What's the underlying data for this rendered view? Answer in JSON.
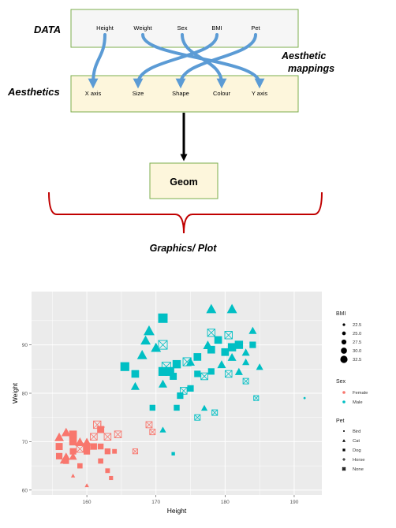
{
  "diagram": {
    "data_label": "DATA",
    "aesthetics_label": "Aesthetics",
    "mappings_label_line1": "Aesthetic",
    "mappings_label_line2": "mappings",
    "data_fields": [
      "Height",
      "Weight",
      "Sex",
      "BMI",
      "Pet"
    ],
    "aesthetic_fields": [
      "X axis",
      "Size",
      "Shape",
      "Colour",
      "Y axis"
    ],
    "mappings": [
      {
        "from": "Height",
        "to": "X axis"
      },
      {
        "from": "Weight",
        "to": "Y axis"
      },
      {
        "from": "Sex",
        "to": "Colour"
      },
      {
        "from": "BMI",
        "to": "Size"
      },
      {
        "from": "Pet",
        "to": "Shape"
      }
    ],
    "geom_label": "Geom",
    "output_label": "Graphics/ Plot",
    "colors": {
      "data_box_fill": "#f6f6f6",
      "box_border": "#7cae4c",
      "aes_box_fill": "#fdf6dc",
      "geom_box_fill": "#fdf6dc",
      "arrow_blue": "#5b9bd5",
      "brace_red": "#c00000",
      "female": "#f8766d",
      "male": "#00bfc4",
      "panel_bg": "#ebebeb"
    }
  },
  "chart_data": {
    "type": "scatter",
    "xlabel": "Height",
    "ylabel": "Weight",
    "xlim": [
      152,
      194
    ],
    "ylim": [
      59,
      101
    ],
    "xticks": [
      160,
      170,
      180,
      190
    ],
    "yticks": [
      60,
      70,
      80,
      90
    ],
    "grid": true,
    "legend_position": "right",
    "legend": {
      "bmi": {
        "title": "BMI",
        "entries": [
          "22.5",
          "25.0",
          "27.5",
          "30.0",
          "32.5"
        ]
      },
      "sex": {
        "title": "Sex",
        "entries": [
          "Female",
          "Male"
        ]
      },
      "pet": {
        "title": "Pet",
        "entries": [
          "Bird",
          "Cat",
          "Dog",
          "Horse",
          "None"
        ]
      }
    },
    "series": [
      {
        "name": "Female",
        "color": "#f8766d",
        "points": [
          {
            "x": 156,
            "y": 71,
            "pet": "Cat",
            "bmi": 29
          },
          {
            "x": 157,
            "y": 72,
            "pet": "Cat",
            "bmi": 29
          },
          {
            "x": 158,
            "y": 70,
            "pet": "Dog",
            "bmi": 28
          },
          {
            "x": 158,
            "y": 68,
            "pet": "Dog",
            "bmi": 27
          },
          {
            "x": 157,
            "y": 66,
            "pet": "Dog",
            "bmi": 26
          },
          {
            "x": 159,
            "y": 70,
            "pet": "Cat",
            "bmi": 29
          },
          {
            "x": 160,
            "y": 69,
            "pet": "Dog",
            "bmi": 28
          },
          {
            "x": 159,
            "y": 65,
            "pet": "Dog",
            "bmi": 25
          },
          {
            "x": 158,
            "y": 71.5,
            "pet": "Dog",
            "bmi": 29
          },
          {
            "x": 160,
            "y": 68,
            "pet": "Dog",
            "bmi": 27
          },
          {
            "x": 161,
            "y": 69,
            "pet": "Dog",
            "bmi": 27
          },
          {
            "x": 156,
            "y": 67,
            "pet": "Dog",
            "bmi": 27
          },
          {
            "x": 157,
            "y": 67,
            "pet": "Cat",
            "bmi": 27
          },
          {
            "x": 158,
            "y": 67,
            "pet": "Cat",
            "bmi": 27
          },
          {
            "x": 156,
            "y": 69,
            "pet": "Dog",
            "bmi": 28
          },
          {
            "x": 160,
            "y": 70,
            "pet": "Cat",
            "bmi": 28
          },
          {
            "x": 159,
            "y": 68.5,
            "pet": "None",
            "bmi": 27
          },
          {
            "x": 162,
            "y": 73,
            "pet": "Horse",
            "bmi": 28
          },
          {
            "x": 161.5,
            "y": 73.5,
            "pet": "None",
            "bmi": 28
          },
          {
            "x": 162,
            "y": 72.5,
            "pet": "Dog",
            "bmi": 28
          },
          {
            "x": 161,
            "y": 71,
            "pet": "None",
            "bmi": 27
          },
          {
            "x": 163,
            "y": 71,
            "pet": "None",
            "bmi": 27
          },
          {
            "x": 164.5,
            "y": 71.5,
            "pet": "None",
            "bmi": 27
          },
          {
            "x": 158,
            "y": 70,
            "pet": "None",
            "bmi": 27
          },
          {
            "x": 162,
            "y": 69,
            "pet": "Dog",
            "bmi": 26
          },
          {
            "x": 163,
            "y": 68,
            "pet": "Dog",
            "bmi": 26
          },
          {
            "x": 162,
            "y": 66,
            "pet": "Dog",
            "bmi": 25
          },
          {
            "x": 163,
            "y": 64,
            "pet": "Dog",
            "bmi": 24
          },
          {
            "x": 163.5,
            "y": 62.5,
            "pet": "Dog",
            "bmi": 23
          },
          {
            "x": 160,
            "y": 61,
            "pet": "Cat",
            "bmi": 22
          },
          {
            "x": 158,
            "y": 63,
            "pet": "Cat",
            "bmi": 22
          },
          {
            "x": 156.5,
            "y": 66,
            "pet": "Cat",
            "bmi": 24
          },
          {
            "x": 169,
            "y": 73.5,
            "pet": "None",
            "bmi": 26
          },
          {
            "x": 169.5,
            "y": 72,
            "pet": "None",
            "bmi": 25
          },
          {
            "x": 167,
            "y": 68,
            "pet": "None",
            "bmi": 24
          },
          {
            "x": 164,
            "y": 68,
            "pet": "Dog",
            "bmi": 24
          }
        ]
      },
      {
        "name": "Male",
        "color": "#00bfc4",
        "points": [
          {
            "x": 171,
            "y": 95.5,
            "pet": "Dog",
            "bmi": 32
          },
          {
            "x": 169,
            "y": 93,
            "pet": "Cat",
            "bmi": 31
          },
          {
            "x": 168.5,
            "y": 91,
            "pet": "Cat",
            "bmi": 30
          },
          {
            "x": 168,
            "y": 88,
            "pet": "Cat",
            "bmi": 30
          },
          {
            "x": 170,
            "y": 89.5,
            "pet": "Cat",
            "bmi": 30
          },
          {
            "x": 171,
            "y": 90,
            "pet": "None",
            "bmi": 30
          },
          {
            "x": 165.5,
            "y": 85.5,
            "pet": "Dog",
            "bmi": 31
          },
          {
            "x": 167,
            "y": 84,
            "pet": "Dog",
            "bmi": 29
          },
          {
            "x": 171,
            "y": 84.5,
            "pet": "Dog",
            "bmi": 31
          },
          {
            "x": 172,
            "y": 84.5,
            "pet": "Dog",
            "bmi": 31
          },
          {
            "x": 171.5,
            "y": 85.5,
            "pet": "None",
            "bmi": 30
          },
          {
            "x": 173,
            "y": 86,
            "pet": "Dog",
            "bmi": 30
          },
          {
            "x": 174.5,
            "y": 86.5,
            "pet": "None",
            "bmi": 29
          },
          {
            "x": 176,
            "y": 87.5,
            "pet": "Dog",
            "bmi": 29
          },
          {
            "x": 175,
            "y": 86.5,
            "pet": "Cat",
            "bmi": 28
          },
          {
            "x": 167,
            "y": 81.5,
            "pet": "Cat",
            "bmi": 28
          },
          {
            "x": 172.5,
            "y": 83.5,
            "pet": "Dog",
            "bmi": 28
          },
          {
            "x": 171,
            "y": 82,
            "pet": "Cat",
            "bmi": 28
          },
          {
            "x": 174,
            "y": 80.5,
            "pet": "None",
            "bmi": 27
          },
          {
            "x": 173.5,
            "y": 79.5,
            "pet": "Dog",
            "bmi": 27
          },
          {
            "x": 175,
            "y": 81,
            "pet": "Dog",
            "bmi": 27
          },
          {
            "x": 176,
            "y": 84,
            "pet": "Dog",
            "bmi": 27
          },
          {
            "x": 177,
            "y": 83.5,
            "pet": "None",
            "bmi": 27
          },
          {
            "x": 173,
            "y": 77,
            "pet": "Dog",
            "bmi": 26
          },
          {
            "x": 169.5,
            "y": 77,
            "pet": "Dog",
            "bmi": 26
          },
          {
            "x": 176,
            "y": 75,
            "pet": "None",
            "bmi": 25
          },
          {
            "x": 177,
            "y": 77,
            "pet": "Cat",
            "bmi": 25
          },
          {
            "x": 171,
            "y": 72.5,
            "pet": "Cat",
            "bmi": 25
          },
          {
            "x": 172.5,
            "y": 67.5,
            "pet": "Dog",
            "bmi": 22
          },
          {
            "x": 178,
            "y": 97.5,
            "pet": "Cat",
            "bmi": 30
          },
          {
            "x": 181,
            "y": 97.5,
            "pet": "Cat",
            "bmi": 30
          },
          {
            "x": 178,
            "y": 92.5,
            "pet": "None",
            "bmi": 28
          },
          {
            "x": 180.5,
            "y": 92,
            "pet": "None",
            "bmi": 28
          },
          {
            "x": 179,
            "y": 91,
            "pet": "Dog",
            "bmi": 29
          },
          {
            "x": 177.5,
            "y": 90,
            "pet": "Cat",
            "bmi": 29
          },
          {
            "x": 178,
            "y": 89,
            "pet": "Dog",
            "bmi": 29
          },
          {
            "x": 180,
            "y": 88.5,
            "pet": "Dog",
            "bmi": 29
          },
          {
            "x": 181,
            "y": 89.5,
            "pet": "Dog",
            "bmi": 30
          },
          {
            "x": 182,
            "y": 90,
            "pet": "Dog",
            "bmi": 30
          },
          {
            "x": 181,
            "y": 87.5,
            "pet": "Cat",
            "bmi": 28
          },
          {
            "x": 179.5,
            "y": 86,
            "pet": "Cat",
            "bmi": 28
          },
          {
            "x": 178,
            "y": 84.5,
            "pet": "Dog",
            "bmi": 27
          },
          {
            "x": 180.5,
            "y": 84,
            "pet": "None",
            "bmi": 27
          },
          {
            "x": 182,
            "y": 84.5,
            "pet": "Cat",
            "bmi": 27
          },
          {
            "x": 183,
            "y": 88.5,
            "pet": "Cat",
            "bmi": 27
          },
          {
            "x": 184,
            "y": 90,
            "pet": "Dog",
            "bmi": 27
          },
          {
            "x": 183,
            "y": 86.5,
            "pet": "Cat",
            "bmi": 26
          },
          {
            "x": 185,
            "y": 85.5,
            "pet": "Cat",
            "bmi": 26
          },
          {
            "x": 184,
            "y": 93,
            "pet": "Cat",
            "bmi": 27
          },
          {
            "x": 183,
            "y": 82.5,
            "pet": "None",
            "bmi": 25
          },
          {
            "x": 184.5,
            "y": 79,
            "pet": "None",
            "bmi": 24
          },
          {
            "x": 178.5,
            "y": 76,
            "pet": "None",
            "bmi": 25
          },
          {
            "x": 191.5,
            "y": 79,
            "pet": "Bird",
            "bmi": 22
          }
        ]
      }
    ]
  }
}
